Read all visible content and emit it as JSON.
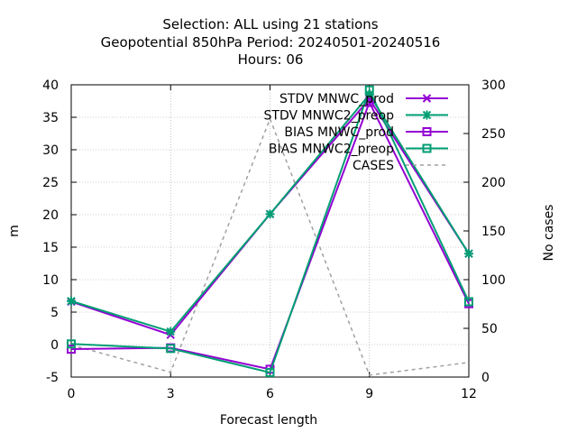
{
  "chart_data": {
    "type": "line",
    "title_lines": [
      "Selection: ALL using    21 stations",
      "Geopotential 850hPa   Period: 20240501-20240516",
      "Hours:  06"
    ],
    "xlabel": "Forecast length",
    "ylabel": "m",
    "y2label": "No cases",
    "x": [
      0,
      3,
      6,
      9,
      12
    ],
    "xlim": [
      0,
      12
    ],
    "ylim": [
      -5,
      40
    ],
    "y2lim": [
      0,
      300
    ],
    "x_ticks": [
      0,
      3,
      6,
      9,
      12
    ],
    "y_ticks": [
      -5,
      0,
      5,
      10,
      15,
      20,
      25,
      30,
      35,
      40
    ],
    "y2_ticks": [
      0,
      50,
      100,
      150,
      200,
      250,
      300
    ],
    "grid": true,
    "legend_position": "top-right",
    "series": [
      {
        "name": "STDV MNWC_prod",
        "axis": "y1",
        "color": "#9400d3",
        "marker": "x",
        "dash": "",
        "values": [
          6.6,
          1.5,
          20.1,
          37.8,
          14.0
        ]
      },
      {
        "name": "STDV MNWC2_preop",
        "axis": "y1",
        "color": "#009e73",
        "marker": "star",
        "dash": "",
        "values": [
          6.7,
          2.0,
          20.1,
          38.5,
          14.0
        ]
      },
      {
        "name": "BIAS MNWC_prod",
        "axis": "y1",
        "color": "#9400d3",
        "marker": "square",
        "dash": "",
        "values": [
          -0.7,
          -0.5,
          -3.8,
          37.3,
          6.3
        ]
      },
      {
        "name": "BIAS MNWC2_preop",
        "axis": "y1",
        "color": "#009e73",
        "marker": "square",
        "dash": "",
        "values": [
          0.1,
          -0.6,
          -4.3,
          39.2,
          6.6
        ]
      },
      {
        "name": "CASES",
        "axis": "y2",
        "color": "#a0a0a0",
        "marker": "none",
        "dash": "4,4",
        "values": [
          33,
          5,
          265,
          2,
          15
        ]
      }
    ]
  }
}
